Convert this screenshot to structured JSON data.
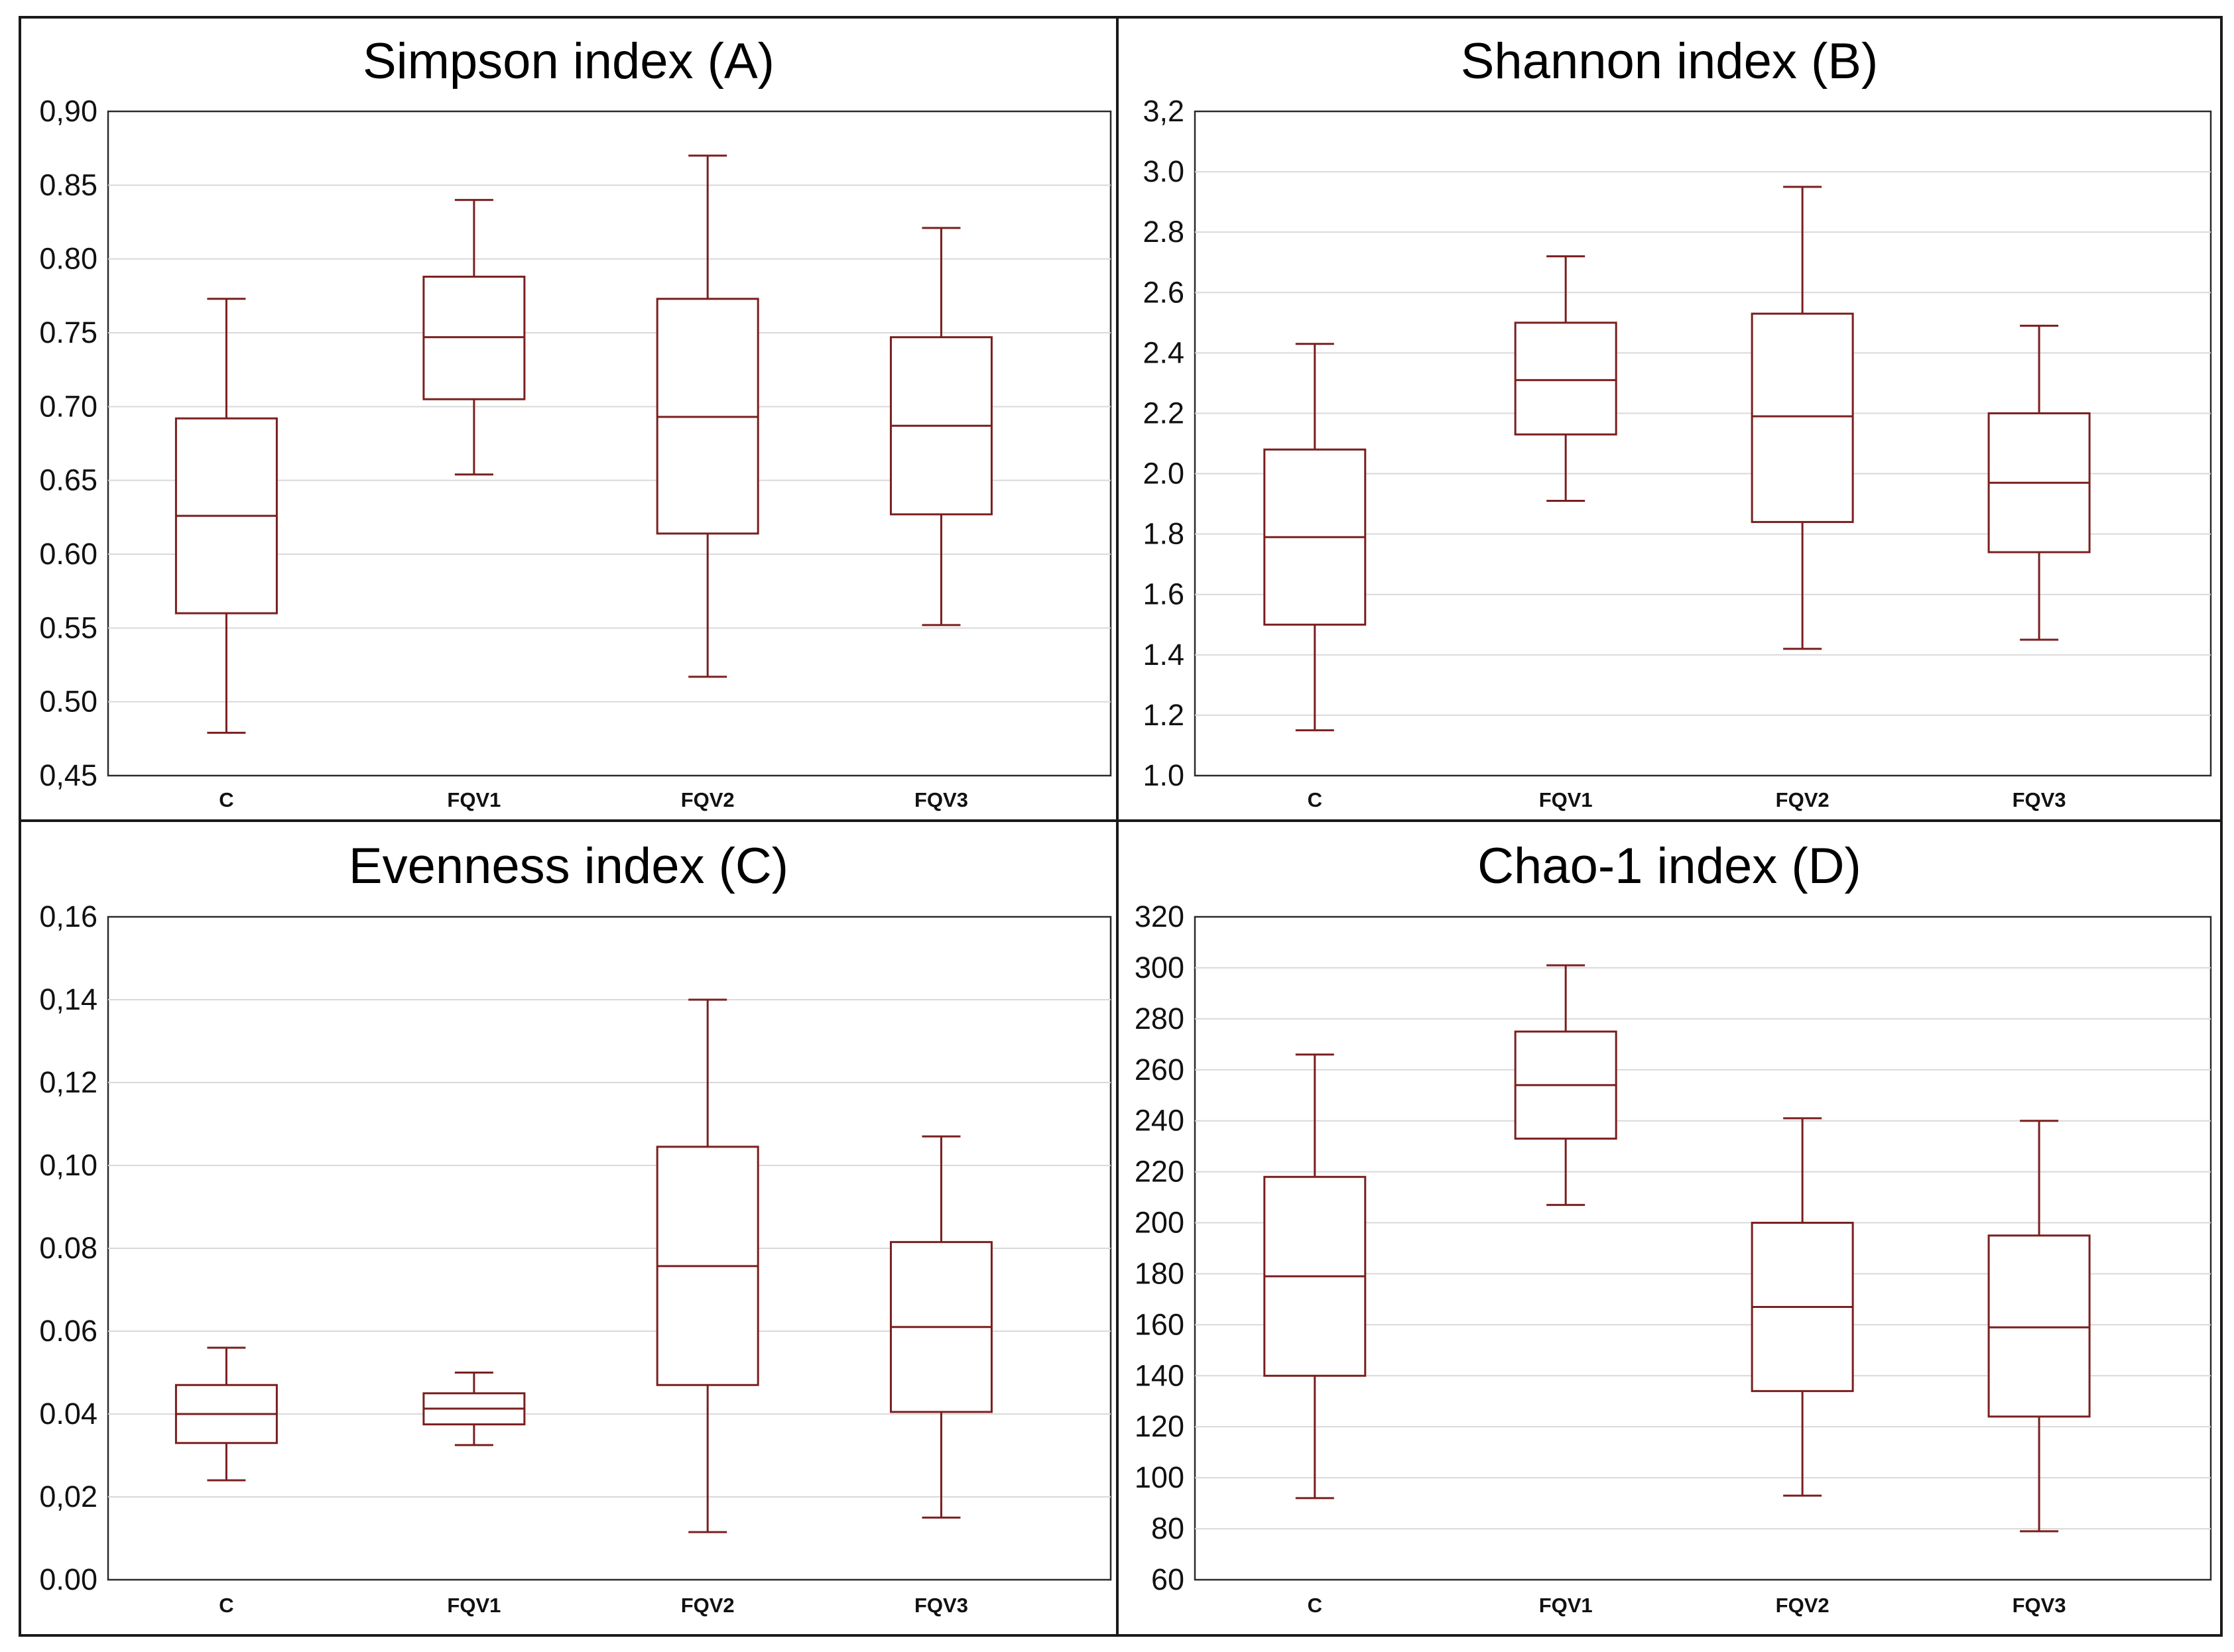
{
  "chart_data": [
    {
      "type": "box",
      "title": "Simpson index (A)",
      "categories": [
        "C",
        "FQV1",
        "FQV2",
        "FQV3"
      ],
      "yticks": [
        "0,90",
        "0.85",
        "0.80",
        "0.75",
        "0.70",
        "0.65",
        "0.60",
        "0.55",
        "0.50",
        "0,45"
      ],
      "ylim": [
        0.45,
        0.9
      ],
      "boxes": [
        {
          "min": 0.479,
          "q1": 0.56,
          "median": 0.626,
          "q3": 0.692,
          "max": 0.773
        },
        {
          "min": 0.654,
          "q1": 0.705,
          "median": 0.747,
          "q3": 0.788,
          "max": 0.84
        },
        {
          "min": 0.517,
          "q1": 0.614,
          "median": 0.693,
          "q3": 0.773,
          "max": 0.87
        },
        {
          "min": 0.552,
          "q1": 0.627,
          "median": 0.687,
          "q3": 0.747,
          "max": 0.821
        }
      ]
    },
    {
      "type": "box",
      "title": "Shannon index (B)",
      "categories": [
        "C",
        "FQV1",
        "FQV2",
        "FQV3"
      ],
      "yticks": [
        "3,2",
        "3.0",
        "2.8",
        "2.6",
        "2.4",
        "2.2",
        "2.0",
        "1.8",
        "1.6",
        "1.4",
        "1.2",
        "1.0"
      ],
      "ylim": [
        1.0,
        3.2
      ],
      "boxes": [
        {
          "min": 1.15,
          "q1": 1.5,
          "median": 1.79,
          "q3": 2.08,
          "max": 2.43
        },
        {
          "min": 1.91,
          "q1": 2.13,
          "median": 2.31,
          "q3": 2.5,
          "max": 2.72
        },
        {
          "min": 1.42,
          "q1": 1.84,
          "median": 2.19,
          "q3": 2.53,
          "max": 2.95
        },
        {
          "min": 1.45,
          "q1": 1.74,
          "median": 1.97,
          "q3": 2.2,
          "max": 2.49
        }
      ]
    },
    {
      "type": "box",
      "title": "Evenness index (C)",
      "categories": [
        "C",
        "FQV1",
        "FQV2",
        "FQV3"
      ],
      "yticks": [
        "0,16",
        "0,14",
        "0,12",
        "0,10",
        "0.08",
        "0.06",
        "0.04",
        "0,02",
        "0.00"
      ],
      "ylim": [
        0.0,
        0.16
      ],
      "boxes": [
        {
          "min": 0.024,
          "q1": 0.033,
          "median": 0.04,
          "q3": 0.047,
          "max": 0.056
        },
        {
          "min": 0.0325,
          "q1": 0.0375,
          "median": 0.0413,
          "q3": 0.045,
          "max": 0.05
        },
        {
          "min": 0.0115,
          "q1": 0.047,
          "median": 0.0757,
          "q3": 0.1045,
          "max": 0.14
        },
        {
          "min": 0.015,
          "q1": 0.0405,
          "median": 0.061,
          "q3": 0.0815,
          "max": 0.107
        }
      ]
    },
    {
      "type": "box",
      "title": "Chao-1 index (D)",
      "categories": [
        "C",
        "FQV1",
        "FQV2",
        "FQV3"
      ],
      "yticks": [
        "320",
        "300",
        "280",
        "260",
        "240",
        "220",
        "200",
        "180",
        "160",
        "140",
        "120",
        "100",
        "80",
        "60"
      ],
      "ylim": [
        60,
        320
      ],
      "boxes": [
        {
          "min": 92,
          "q1": 140,
          "median": 179,
          "q3": 218,
          "max": 266
        },
        {
          "min": 207,
          "q1": 233,
          "median": 254,
          "q3": 275,
          "max": 301
        },
        {
          "min": 93,
          "q1": 134,
          "median": 167,
          "q3": 200,
          "max": 241
        },
        {
          "min": 79,
          "q1": 124,
          "median": 159,
          "q3": 195,
          "max": 240
        }
      ]
    }
  ]
}
